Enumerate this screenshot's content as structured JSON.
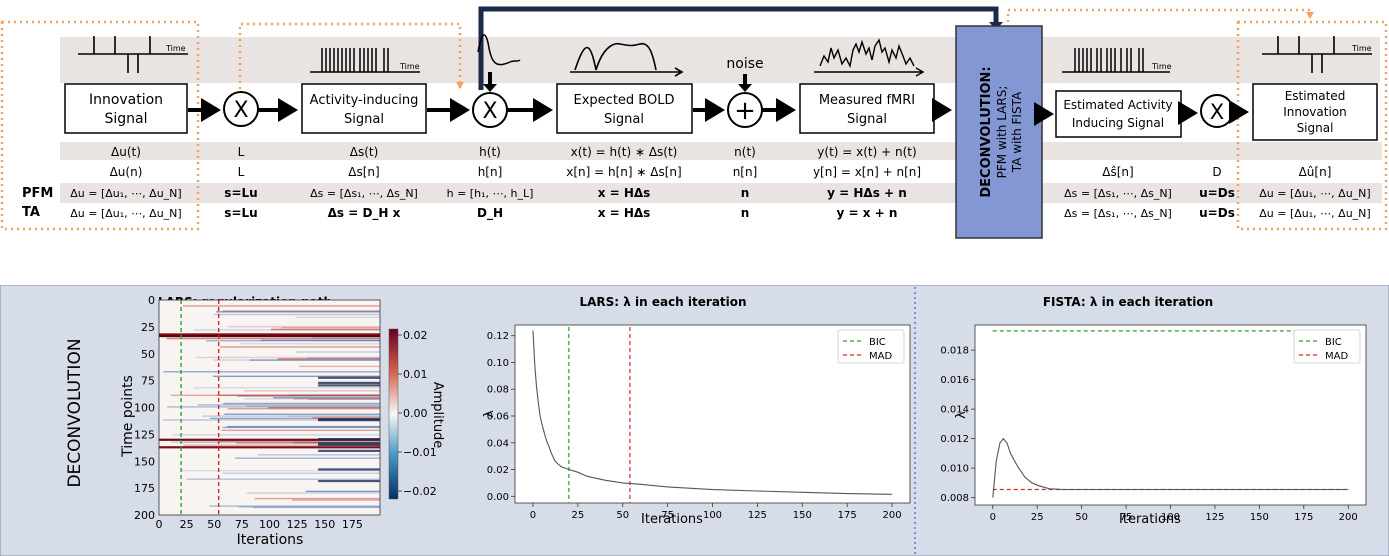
{
  "pipeline": {
    "blocks": [
      {
        "id": "innovation",
        "lines": [
          "Innovation",
          "Signal"
        ]
      },
      {
        "id": "activity",
        "lines": [
          "Activity-inducing",
          "Signal"
        ]
      },
      {
        "id": "bold",
        "lines": [
          "Expected BOLD",
          "Signal"
        ]
      },
      {
        "id": "fmri",
        "lines": [
          "Measured fMRI",
          "Signal"
        ]
      },
      {
        "id": "est-activity",
        "lines": [
          "Estimated Activity",
          "Inducing Signal"
        ]
      },
      {
        "id": "est-innovation",
        "lines": [
          "Estimated",
          "Innovation",
          "Signal"
        ]
      }
    ],
    "operators": {
      "multiply": "X",
      "add": "+"
    },
    "time_label": "Time",
    "noise_label": "noise",
    "deconv_box": [
      "DECONVOLUTION:",
      "PFM with LARS;",
      "TA with FISTA"
    ],
    "row_labels": [
      "PFM",
      "TA"
    ],
    "rows": [
      [
        "Δu(t)",
        "L",
        "Δs(t)",
        "h(t)",
        "x(t) = h(t) ∗ Δs(t)",
        "n(t)",
        "y(t) = x(t) + n(t)",
        "",
        "",
        ""
      ],
      [
        "Δu(n)",
        "L",
        "Δs[n]",
        "h[n]",
        "x[n] = h[n] ∗ Δs[n]",
        "n[n]",
        "y[n] = x[n] + n[n]",
        "Δŝ[n]",
        "D",
        "Δû[n]"
      ],
      [
        "Δu = [Δu₁, ⋯, Δu_N]",
        "s=Lu",
        "Δs = [Δs₁, ⋯, Δs_N]",
        "h = [h₁, ⋯, h_L]",
        "x = HΔs",
        "n",
        "y = HΔs + n",
        "Δs = [Δs₁, ⋯, Δs_N]",
        "u=Ds",
        "Δu = [Δu₁, ⋯, Δu_N]"
      ],
      [
        "Δu = [Δu₁, ⋯, Δu_N]",
        "s=Lu",
        "Δs = D_H x",
        "D_H",
        "x = HΔs",
        "n",
        "y = x + n",
        "Δs = [Δs₁, ⋯, Δs_N]",
        "u=Ds",
        "Δu = [Δu₁, ⋯, Δu_N]"
      ]
    ]
  },
  "panel": {
    "side_label": "DECONVOLUTION",
    "heatmap": {
      "title": "LARS: regularization path",
      "xlabel": "Iterations",
      "ylabel": "Time points",
      "xticks": [
        "0",
        "25",
        "50",
        "75",
        "100",
        "125",
        "150",
        "175"
      ],
      "yticks": [
        "0",
        "25",
        "50",
        "75",
        "100",
        "125",
        "150",
        "175",
        "200"
      ],
      "colorbar_label": "Amplitude",
      "colorbar_ticks": [
        "0.02",
        "0.01",
        "0.00",
        "−0.01",
        "−0.02"
      ]
    }
  },
  "chart_data": [
    {
      "type": "line",
      "title": "LARS: λ in each iteration",
      "xlabel": "Iterations",
      "ylabel": "λ",
      "xlim": [
        -10,
        210
      ],
      "ylim": [
        -0.005,
        0.128
      ],
      "xticks": [
        0,
        25,
        50,
        75,
        100,
        125,
        150,
        175,
        200
      ],
      "yticks": [
        0.0,
        0.02,
        0.04,
        0.06,
        0.08,
        0.1,
        0.12
      ],
      "ytick_labels": [
        "0.00",
        "0.02",
        "0.04",
        "0.06",
        "0.08",
        "0.10",
        "0.12"
      ],
      "series": [
        {
          "values": [
            [
              0,
              0.124
            ],
            [
              1,
              0.098
            ],
            [
              2,
              0.082
            ],
            [
              3,
              0.07
            ],
            [
              4,
              0.06
            ],
            [
              5,
              0.054
            ],
            [
              6,
              0.049
            ],
            [
              7,
              0.044
            ],
            [
              8,
              0.04
            ],
            [
              9,
              0.037
            ],
            [
              10,
              0.033
            ],
            [
              12,
              0.027
            ],
            [
              14,
              0.024
            ],
            [
              16,
              0.022
            ],
            [
              20,
              0.02
            ],
            [
              25,
              0.018
            ],
            [
              30,
              0.015
            ],
            [
              40,
              0.012
            ],
            [
              50,
              0.01
            ],
            [
              60,
              0.009
            ],
            [
              75,
              0.007
            ],
            [
              100,
              0.005
            ],
            [
              125,
              0.004
            ],
            [
              150,
              0.003
            ],
            [
              175,
              0.002
            ],
            [
              200,
              0.0015
            ]
          ]
        }
      ],
      "vlines": [
        {
          "name": "BIC",
          "x": 20,
          "color": "#2ca02c"
        },
        {
          "name": "MAD",
          "x": 54,
          "color": "#d62728"
        }
      ],
      "legend": "top-right"
    },
    {
      "type": "line",
      "title": "FISTA: λ in each iteration",
      "xlabel": "Iterations",
      "ylabel": "λ",
      "xlim": [
        -10,
        210
      ],
      "ylim": [
        0.0075,
        0.0197
      ],
      "xticks": [
        0,
        25,
        50,
        75,
        100,
        125,
        150,
        175,
        200
      ],
      "yticks": [
        0.008,
        0.01,
        0.012,
        0.014,
        0.016,
        0.018
      ],
      "ytick_labels": [
        "0.008",
        "0.010",
        "0.012",
        "0.014",
        "0.016",
        "0.018"
      ],
      "series": [
        {
          "values": [
            [
              0,
              0.008
            ],
            [
              2,
              0.0105
            ],
            [
              4,
              0.0117
            ],
            [
              6,
              0.012
            ],
            [
              8,
              0.0117
            ],
            [
              10,
              0.011
            ],
            [
              14,
              0.0101
            ],
            [
              18,
              0.0094
            ],
            [
              22,
              0.009
            ],
            [
              26,
              0.0088
            ],
            [
              32,
              0.0086
            ],
            [
              40,
              0.00855
            ],
            [
              60,
              0.00855
            ],
            [
              200,
              0.00855
            ]
          ]
        }
      ],
      "hlines": [
        {
          "name": "BIC",
          "y": 0.0193,
          "color": "#2ca02c"
        },
        {
          "name": "MAD",
          "y": 0.00855,
          "color": "#d62728"
        }
      ],
      "legend": "top-right"
    }
  ]
}
